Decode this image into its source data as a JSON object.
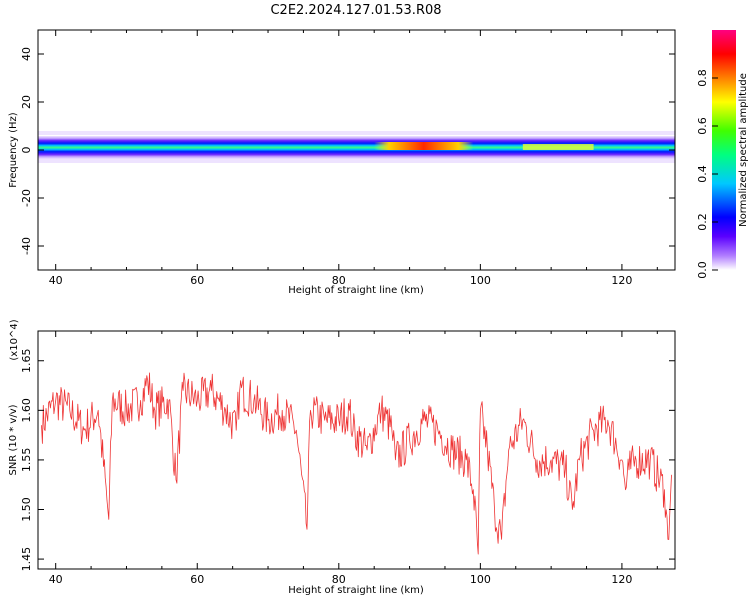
{
  "figure": {
    "title": "C2E2.2024.127.01.53.R08"
  },
  "chart_data": [
    {
      "type": "heatmap",
      "xlabel": "Height of straight line (km)",
      "ylabel": "Frequency (Hz)",
      "xlim": [
        37.5,
        127.5
      ],
      "ylim": [
        -50,
        50
      ],
      "xticks": [
        40,
        60,
        80,
        100,
        120
      ],
      "yticks": [
        40,
        20,
        0,
        -20,
        -40
      ],
      "colorbar": {
        "label": "Normalized spectral amplitude",
        "range": [
          0,
          1
        ],
        "ticks": [
          0.0,
          0.2,
          0.4,
          0.6,
          0.8
        ],
        "colormap": "rainbow (white-violet-blue-cyan-green-yellow-red-magenta)"
      },
      "band": {
        "center_hz": 0,
        "width_hz": [
          -4,
          4
        ],
        "peak_x_range_km": [
          85,
          99
        ],
        "peak_amplitude": 0.85,
        "typical_amplitude": 0.45
      }
    },
    {
      "type": "line",
      "xlabel": "Height of straight line (km)",
      "ylabel": "SNR (10 * v/v)",
      "yscale_label": "(x10^4)",
      "xlim": [
        37.5,
        127.5
      ],
      "ylim": [
        1.44,
        1.68
      ],
      "xticks": [
        40,
        60,
        80,
        100,
        120
      ],
      "yticks": [
        1.65,
        1.6,
        1.55,
        1.5,
        1.45
      ],
      "color": "#ee3333",
      "series": [
        {
          "x": [
            38,
            40,
            42,
            44,
            46,
            47.5,
            48,
            50,
            52,
            53,
            54,
            56,
            57,
            58,
            60,
            62,
            64,
            65.5,
            66,
            68,
            70,
            72,
            74,
            75.5,
            76,
            78,
            80,
            81.5,
            82,
            84,
            86,
            87.5,
            88,
            90,
            92,
            94,
            96,
            98,
            99,
            99.7,
            100,
            101,
            102,
            103,
            104,
            106,
            108,
            110,
            112,
            113,
            114,
            116,
            118,
            120,
            120.5,
            121,
            122,
            124,
            126,
            126.5,
            127
          ],
          "y": [
            1.585,
            1.61,
            1.6,
            1.58,
            1.6,
            1.49,
            1.61,
            1.6,
            1.61,
            1.63,
            1.6,
            1.61,
            1.53,
            1.62,
            1.61,
            1.62,
            1.6,
            1.58,
            1.62,
            1.61,
            1.59,
            1.6,
            1.58,
            1.48,
            1.6,
            1.59,
            1.59,
            1.6,
            1.58,
            1.56,
            1.6,
            1.58,
            1.55,
            1.57,
            1.59,
            1.58,
            1.56,
            1.55,
            1.52,
            1.455,
            1.6,
            1.56,
            1.5,
            1.47,
            1.56,
            1.59,
            1.55,
            1.55,
            1.54,
            1.5,
            1.55,
            1.58,
            1.59,
            1.55,
            1.52,
            1.54,
            1.55,
            1.55,
            1.52,
            1.47,
            1.535
          ]
        }
      ]
    }
  ]
}
